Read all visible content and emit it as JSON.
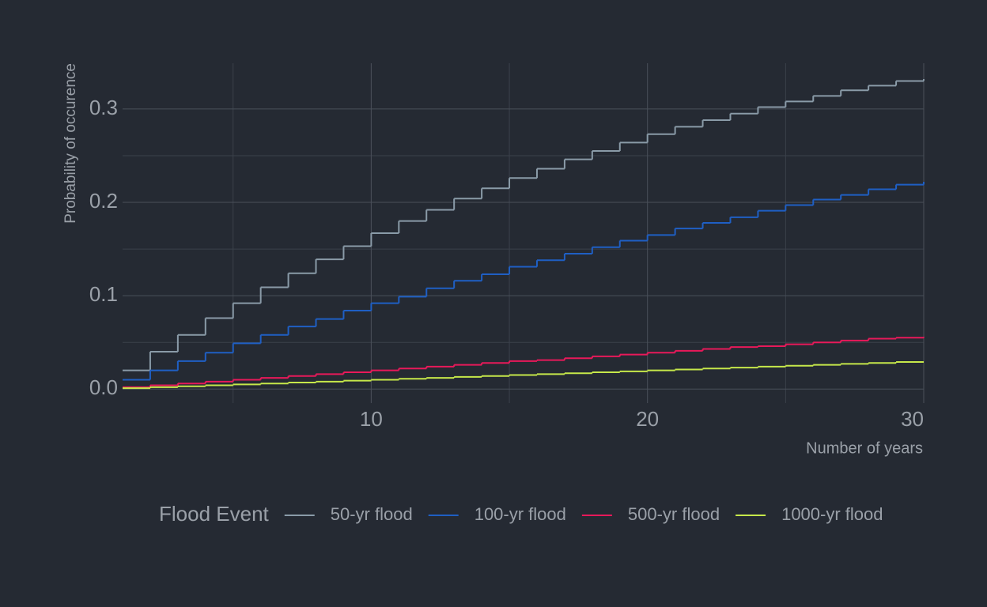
{
  "chart_data": {
    "type": "step",
    "x_label": "Number of years",
    "y_label": "Probability of occurence",
    "legend_title": "Flood Event",
    "x": [
      1,
      2,
      3,
      4,
      5,
      6,
      7,
      8,
      9,
      10,
      11,
      12,
      13,
      14,
      15,
      16,
      17,
      18,
      19,
      20,
      21,
      22,
      23,
      24,
      25,
      26,
      27,
      28,
      29,
      30
    ],
    "series": [
      {
        "name": "50-yr flood",
        "color": "#8a9ba8",
        "values": [
          0.02,
          0.04,
          0.058,
          0.076,
          0.092,
          0.109,
          0.124,
          0.139,
          0.153,
          0.167,
          0.18,
          0.192,
          0.204,
          0.215,
          0.226,
          0.236,
          0.246,
          0.255,
          0.264,
          0.273,
          0.281,
          0.288,
          0.295,
          0.302,
          0.308,
          0.314,
          0.32,
          0.325,
          0.33,
          0.332
        ]
      },
      {
        "name": "100-yr flood",
        "color": "#1f5fc4",
        "values": [
          0.01,
          0.02,
          0.03,
          0.039,
          0.049,
          0.058,
          0.067,
          0.075,
          0.084,
          0.092,
          0.099,
          0.108,
          0.116,
          0.123,
          0.131,
          0.138,
          0.145,
          0.152,
          0.159,
          0.165,
          0.172,
          0.178,
          0.184,
          0.191,
          0.197,
          0.203,
          0.208,
          0.214,
          0.219,
          0.222
        ]
      },
      {
        "name": "500-yr flood",
        "color": "#e8195a",
        "values": [
          0.002,
          0.004,
          0.006,
          0.008,
          0.01,
          0.012,
          0.014,
          0.016,
          0.018,
          0.02,
          0.022,
          0.024,
          0.026,
          0.028,
          0.03,
          0.031,
          0.033,
          0.035,
          0.037,
          0.039,
          0.041,
          0.043,
          0.045,
          0.046,
          0.048,
          0.05,
          0.052,
          0.054,
          0.055,
          0.056
        ]
      },
      {
        "name": "1000-yr flood",
        "color": "#c6e84a",
        "values": [
          0.001,
          0.002,
          0.003,
          0.004,
          0.005,
          0.006,
          0.007,
          0.008,
          0.009,
          0.01,
          0.011,
          0.012,
          0.013,
          0.014,
          0.015,
          0.016,
          0.017,
          0.018,
          0.019,
          0.02,
          0.021,
          0.022,
          0.023,
          0.024,
          0.025,
          0.026,
          0.027,
          0.028,
          0.029,
          0.029
        ]
      }
    ],
    "xlim": [
      1,
      30
    ],
    "ylim": [
      -0.015,
      0.349
    ],
    "xticks": [
      10,
      20,
      30
    ],
    "yticks": [
      {
        "value": 0,
        "label": "0.0"
      },
      0.1,
      0.2,
      0.3
    ],
    "minor_xticks": [
      5,
      15,
      25
    ],
    "minor_yticks": [
      0.05,
      0.15,
      0.25
    ],
    "grid": true,
    "legend_position": "bottom"
  }
}
